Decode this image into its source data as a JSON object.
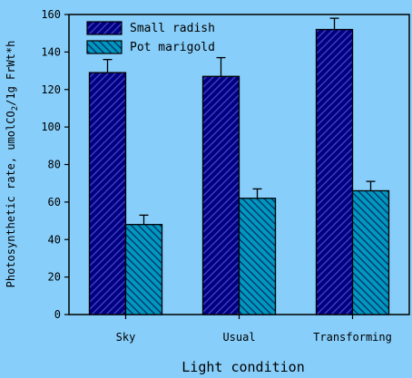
{
  "chart_data": {
    "type": "bar",
    "xlabel": "Light condition",
    "ylabel_parts": [
      "Photosynthetic rate, umolCO",
      "2",
      "/1g FrWt*h"
    ],
    "categories": [
      "Sky",
      "Usual",
      "Transforming"
    ],
    "ylim": [
      0,
      160
    ],
    "yticks": [
      0,
      20,
      40,
      60,
      80,
      100,
      120,
      140,
      160
    ],
    "grid": false,
    "legend_position": "top-left",
    "series": [
      {
        "name": "Small radish",
        "values": [
          129,
          127,
          152
        ],
        "errors": [
          7,
          10,
          6
        ],
        "fill": "#000080",
        "hatch_color": "#4040c0"
      },
      {
        "name": "Pot marigold",
        "values": [
          48,
          62,
          66
        ],
        "errors": [
          5,
          5,
          5
        ],
        "fill": "#0099b8",
        "hatch_color": "#003080"
      }
    ]
  }
}
